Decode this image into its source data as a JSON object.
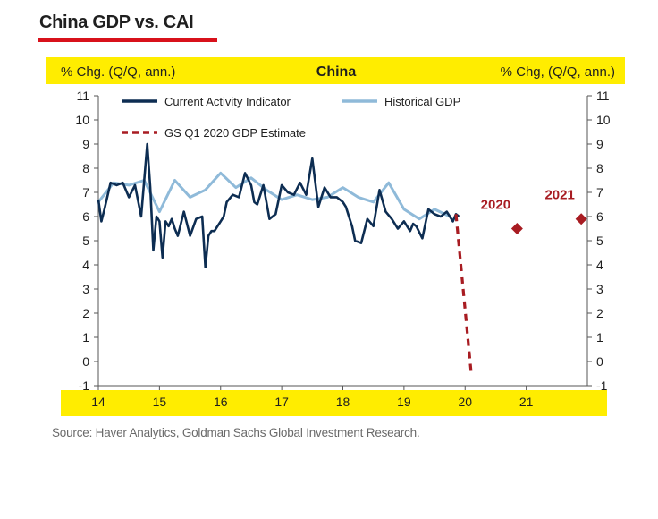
{
  "page": {
    "title": "China GDP vs. CAI",
    "source": "Source: Haver Analytics, Goldman Sachs Global Investment Research."
  },
  "colors": {
    "band": "#ffed00",
    "title_underline": "#d8111b",
    "cai": "#0d2d52",
    "gdp": "#8fbad9",
    "estimate": "#a81c22",
    "marker": "#a81c22"
  },
  "chart_data": {
    "type": "line",
    "title": "China",
    "ylabel_left": "% Chg. (Q/Q, ann.)",
    "ylabel_right": "% Chg, (Q/Q, ann.)",
    "xlabel": "",
    "xlim": [
      2014.0,
      2022.0
    ],
    "ylim": [
      -1,
      11
    ],
    "y_ticks": [
      -1,
      0,
      1,
      2,
      3,
      4,
      5,
      6,
      7,
      8,
      9,
      10,
      11
    ],
    "x_ticks": [
      {
        "label": "14",
        "value": 2014.0
      },
      {
        "label": "15",
        "value": 2015.0
      },
      {
        "label": "16",
        "value": 2016.0
      },
      {
        "label": "17",
        "value": 2017.0
      },
      {
        "label": "18",
        "value": 2018.0
      },
      {
        "label": "19",
        "value": 2019.0
      },
      {
        "label": "20",
        "value": 2020.0
      },
      {
        "label": "21",
        "value": 2021.0
      }
    ],
    "legend": [
      "Current Activity Indicator",
      "Historical GDP",
      "GS Q1 2020 GDP Estimate"
    ],
    "series": [
      {
        "name": "Current Activity Indicator",
        "style": "solid-dark",
        "x": [
          2014.0,
          2014.05,
          2014.1,
          2014.2,
          2014.3,
          2014.4,
          2014.5,
          2014.6,
          2014.7,
          2014.8,
          2014.85,
          2014.9,
          2014.95,
          2015.0,
          2015.05,
          2015.1,
          2015.15,
          2015.2,
          2015.25,
          2015.3,
          2015.4,
          2015.5,
          2015.6,
          2015.7,
          2015.75,
          2015.8,
          2015.85,
          2015.9,
          2015.95,
          2016.0,
          2016.05,
          2016.1,
          2016.2,
          2016.3,
          2016.4,
          2016.5,
          2016.55,
          2016.6,
          2016.7,
          2016.8,
          2016.9,
          2017.0,
          2017.1,
          2017.2,
          2017.3,
          2017.4,
          2017.5,
          2017.6,
          2017.7,
          2017.8,
          2017.9,
          2018.0,
          2018.05,
          2018.1,
          2018.15,
          2018.2,
          2018.3,
          2018.4,
          2018.5,
          2018.6,
          2018.7,
          2018.8,
          2018.9,
          2019.0,
          2019.05,
          2019.1,
          2019.15,
          2019.2,
          2019.3,
          2019.4,
          2019.5,
          2019.6,
          2019.7,
          2019.75,
          2019.8,
          2019.85,
          2019.9
        ],
        "values": [
          6.7,
          5.8,
          6.3,
          7.4,
          7.3,
          7.4,
          6.8,
          7.3,
          6.0,
          9.0,
          7.2,
          4.6,
          6.0,
          5.8,
          4.3,
          5.8,
          5.6,
          5.9,
          5.5,
          5.2,
          6.2,
          5.2,
          5.9,
          6.0,
          3.9,
          5.2,
          5.4,
          5.4,
          5.6,
          5.8,
          6.0,
          6.6,
          6.9,
          6.8,
          7.8,
          7.3,
          6.6,
          6.5,
          7.3,
          5.9,
          6.1,
          7.3,
          7.0,
          6.9,
          7.4,
          6.9,
          8.4,
          6.4,
          7.2,
          6.8,
          6.8,
          6.6,
          6.4,
          6.0,
          5.6,
          5.0,
          4.9,
          5.9,
          5.6,
          7.1,
          6.2,
          5.9,
          5.5,
          5.8,
          5.6,
          5.4,
          5.7,
          5.6,
          5.1,
          6.3,
          6.1,
          6.0,
          6.2,
          6.0,
          5.8,
          6.1,
          6.0
        ]
      },
      {
        "name": "Historical GDP",
        "style": "solid-light",
        "x": [
          2014.0,
          2014.25,
          2014.5,
          2014.75,
          2015.0,
          2015.25,
          2015.5,
          2015.75,
          2016.0,
          2016.25,
          2016.5,
          2016.75,
          2017.0,
          2017.25,
          2017.5,
          2017.75,
          2018.0,
          2018.25,
          2018.5,
          2018.75,
          2019.0,
          2019.25,
          2019.5,
          2019.75
        ],
        "values": [
          6.6,
          7.4,
          7.3,
          7.5,
          6.2,
          7.5,
          6.8,
          7.1,
          7.8,
          7.2,
          7.6,
          7.1,
          6.7,
          6.9,
          6.7,
          6.8,
          7.2,
          6.8,
          6.6,
          7.4,
          6.3,
          5.9,
          6.3,
          6.0
        ]
      },
      {
        "name": "GS Q1 2020 GDP Estimate",
        "style": "dashed",
        "x": [
          2019.85,
          2020.1
        ],
        "values": [
          6.1,
          -0.5
        ]
      }
    ],
    "markers": [
      {
        "label": "2020",
        "x": 2020.85,
        "value": 5.5
      },
      {
        "label": "2021",
        "x": 2021.9,
        "value": 5.9
      }
    ]
  }
}
